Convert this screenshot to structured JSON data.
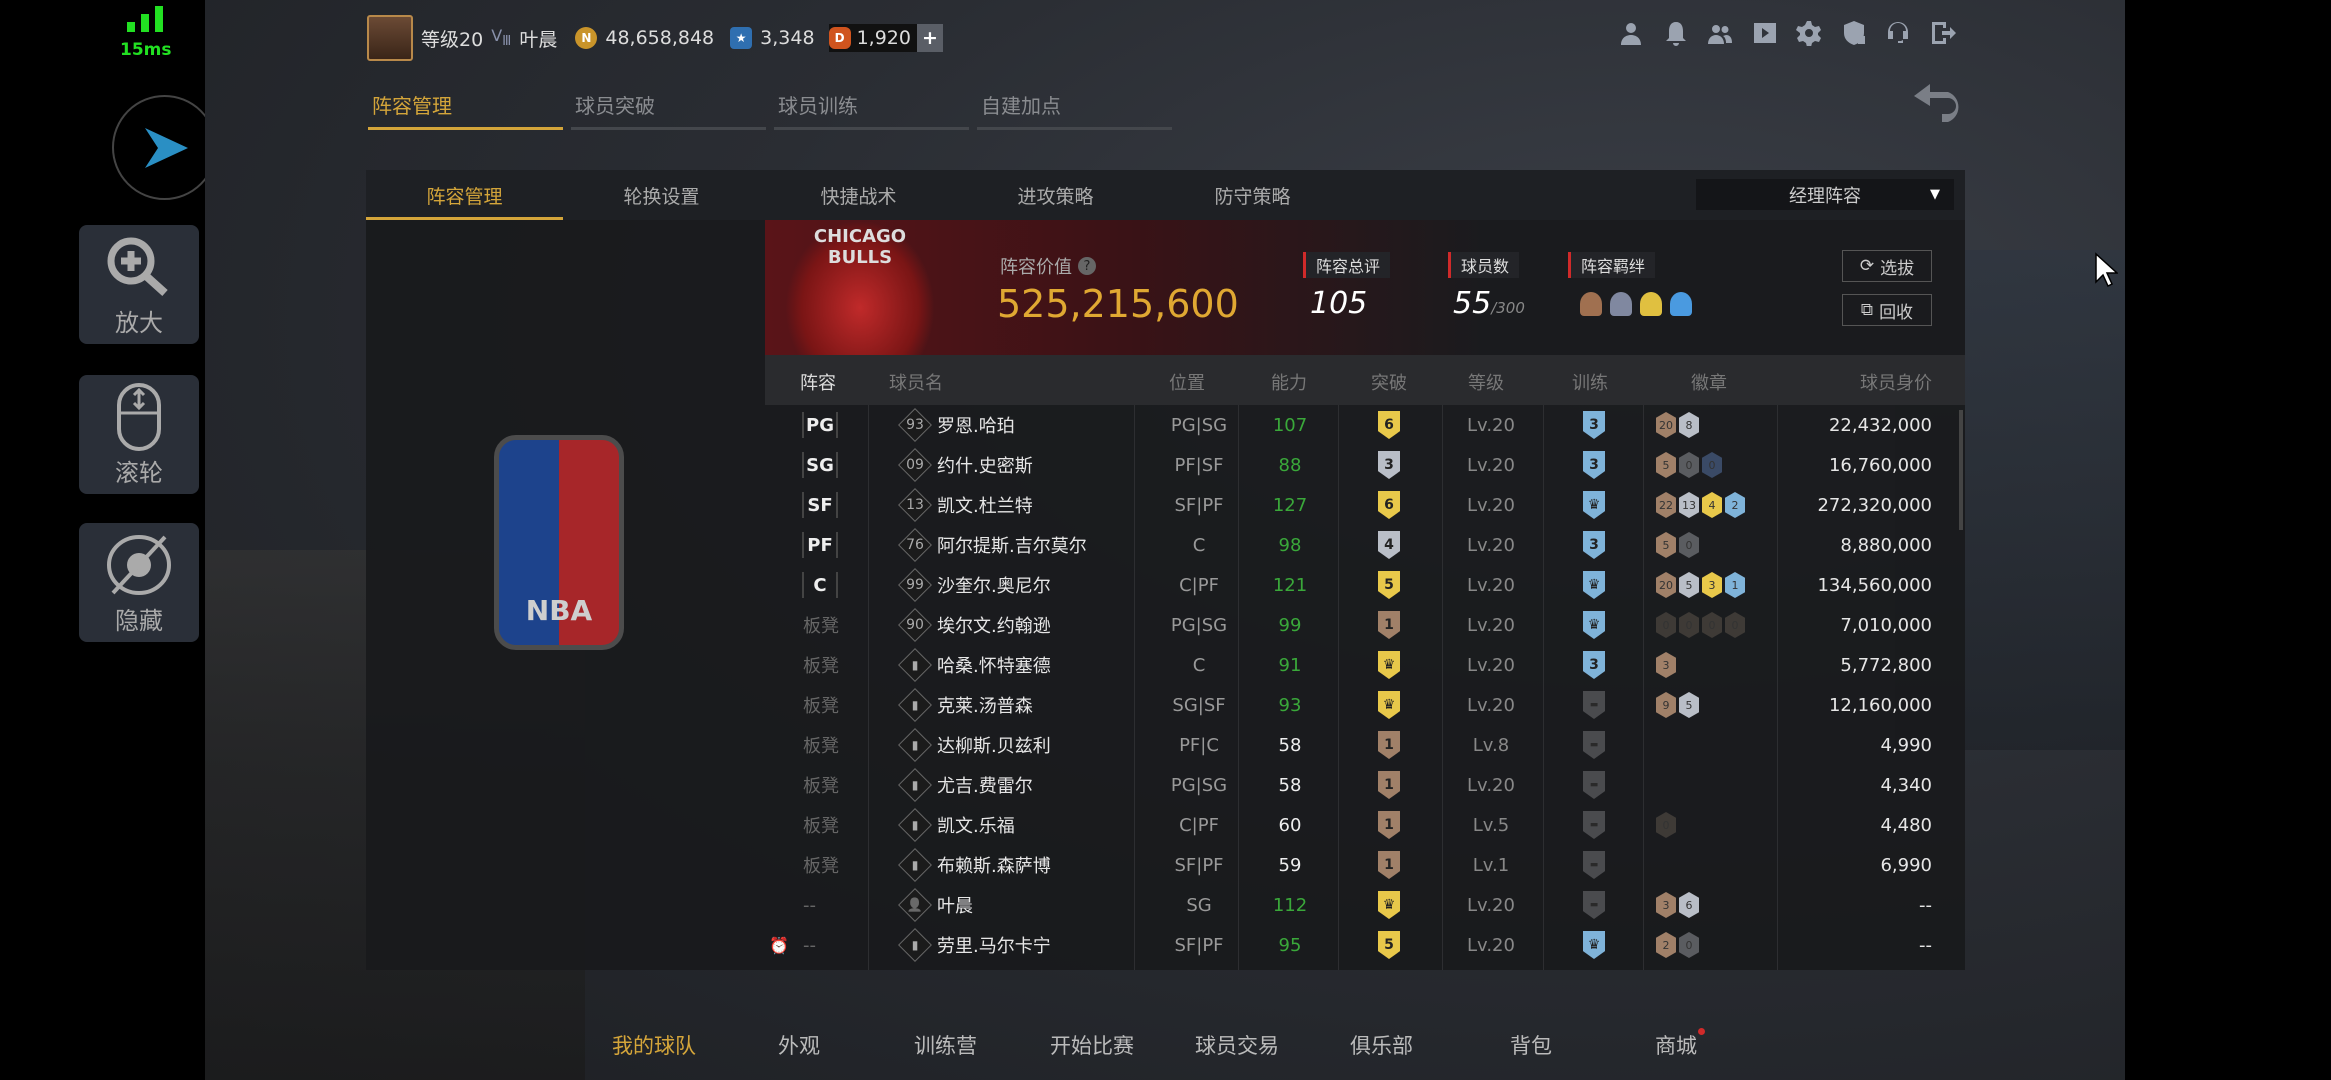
{
  "overlay": {
    "ping": "15ms",
    "zoom_label": "放大",
    "scroll_label": "滚轮",
    "hide_label": "隐藏"
  },
  "topbar": {
    "level": "等级20",
    "vip": "Ⅲ",
    "player_name": "叶晨",
    "coins": "48,658,848",
    "stars": "3,348",
    "diamonds": "1,920",
    "add": "+",
    "icons": [
      "person-icon",
      "bell-icon",
      "friends-icon",
      "video-icon",
      "gear-icon",
      "shield-lock-icon",
      "headset-icon",
      "logout-icon"
    ]
  },
  "main_tabs": [
    {
      "label": "阵容管理",
      "active": true
    },
    {
      "label": "球员突破"
    },
    {
      "label": "球员训练"
    },
    {
      "label": "自建加点"
    }
  ],
  "sub_tabs": [
    {
      "label": "阵容管理",
      "active": true
    },
    {
      "label": "轮换设置"
    },
    {
      "label": "快捷战术"
    },
    {
      "label": "进攻策略"
    },
    {
      "label": "防守策略"
    }
  ],
  "lineup_select": "经理阵容",
  "team": {
    "logo_text": "CHICAGO BULLS",
    "value_label": "阵容价值",
    "value": "525,215,600",
    "rating_label": "阵容总评",
    "rating": "105",
    "count_label": "球员数",
    "count": "55",
    "count_max": "/300",
    "chem_label": "阵容羁绊",
    "select_btn": "选拔",
    "recycle_btn": "回收"
  },
  "columns": {
    "slot": "阵容",
    "name": "球员名",
    "pos": "位置",
    "ovr": "能力",
    "break": "突破",
    "level": "等级",
    "train": "训练",
    "badges": "徽章",
    "value": "球员身价"
  },
  "colors": {
    "accent": "#d4a53a",
    "green": "#3aa83a",
    "gold": "#e8c84a",
    "silver": "#b9bec7",
    "bronze": "#a08068",
    "blue": "#7fb3d9",
    "red": "#d02a2a"
  },
  "rows": [
    {
      "slot": "PG",
      "num": "93",
      "name": "罗恩.哈珀",
      "pos": "PG|SG",
      "ovr": "107",
      "green": true,
      "brk": "6",
      "brk_tier": "gold",
      "level": "Lv.20",
      "train": "3",
      "badges": [
        [
          "20",
          "bronze"
        ],
        [
          "8",
          "silver"
        ]
      ],
      "value": "22,432,000"
    },
    {
      "slot": "SG",
      "num": "09",
      "name": "约什.史密斯",
      "pos": "PF|SF",
      "ovr": "88",
      "green": true,
      "brk": "3",
      "brk_tier": "silver",
      "level": "Lv.20",
      "train": "3",
      "badges": [
        [
          "5",
          "bronze"
        ],
        [
          "0",
          "gray"
        ],
        [
          "0",
          "navy"
        ]
      ],
      "value": "16,760,000"
    },
    {
      "slot": "SF",
      "num": "13",
      "name": "凯文.杜兰特",
      "pos": "SF|PF",
      "ovr": "127",
      "green": true,
      "brk": "6",
      "brk_tier": "gold",
      "level": "Lv.20",
      "train": "crown",
      "badges": [
        [
          "22",
          "bronze"
        ],
        [
          "13",
          "silver"
        ],
        [
          "4",
          "gold"
        ],
        [
          "2",
          "blue"
        ]
      ],
      "value": "272,320,000"
    },
    {
      "slot": "PF",
      "num": "76",
      "name": "阿尔提斯.吉尔莫尔",
      "pos": "C",
      "ovr": "98",
      "green": true,
      "brk": "4",
      "brk_tier": "silver",
      "level": "Lv.20",
      "train": "3",
      "badges": [
        [
          "5",
          "bronze"
        ],
        [
          "0",
          "gray"
        ]
      ],
      "value": "8,880,000"
    },
    {
      "slot": "C",
      "num": "99",
      "name": "沙奎尔.奥尼尔",
      "pos": "C|PF",
      "ovr": "121",
      "green": true,
      "brk": "5",
      "brk_tier": "gold",
      "level": "Lv.20",
      "train": "crown",
      "badges": [
        [
          "20",
          "bronze"
        ],
        [
          "5",
          "silver"
        ],
        [
          "3",
          "gold"
        ],
        [
          "1",
          "blue"
        ]
      ],
      "value": "134,560,000"
    },
    {
      "slot": "板凳",
      "num": "90",
      "name": "埃尔文.约翰逊",
      "pos": "PG|SG",
      "ovr": "99",
      "green": true,
      "brk": "1",
      "brk_tier": "bronze",
      "level": "Lv.20",
      "train": "crown",
      "badges": [
        [
          "0",
          "dim"
        ],
        [
          "0",
          "dim"
        ],
        [
          "0",
          "dim"
        ],
        [
          "0",
          "dim"
        ]
      ],
      "value": "7,010,000"
    },
    {
      "slot": "板凳",
      "num": "signal",
      "name": "哈桑.怀特塞德",
      "pos": "C",
      "ovr": "91",
      "green": true,
      "brk": "♛",
      "brk_tier": "gold",
      "level": "Lv.20",
      "train": "3",
      "badges": [
        [
          "3",
          "bronze"
        ]
      ],
      "value": "5,772,800"
    },
    {
      "slot": "板凳",
      "num": "signal",
      "name": "克莱.汤普森",
      "pos": "SG|SF",
      "ovr": "93",
      "green": true,
      "brk": "♛",
      "brk_tier": "gold",
      "level": "Lv.20",
      "train": "none",
      "badges": [
        [
          "9",
          "bronze"
        ],
        [
          "5",
          "silver"
        ]
      ],
      "value": "12,160,000"
    },
    {
      "slot": "板凳",
      "num": "signal",
      "name": "达柳斯.贝兹利",
      "pos": "PF|C",
      "ovr": "58",
      "green": false,
      "brk": "1",
      "brk_tier": "bronze",
      "level": "Lv.8",
      "train": "none",
      "badges": [],
      "value": "4,990"
    },
    {
      "slot": "板凳",
      "num": "signal",
      "name": "尤吉.费雷尔",
      "pos": "PG|SG",
      "ovr": "58",
      "green": false,
      "brk": "1",
      "brk_tier": "bronze",
      "level": "Lv.20",
      "train": "none",
      "badges": [],
      "value": "4,340"
    },
    {
      "slot": "板凳",
      "num": "signal",
      "name": "凯文.乐福",
      "pos": "C|PF",
      "ovr": "60",
      "green": false,
      "brk": "1",
      "brk_tier": "bronze",
      "level": "Lv.5",
      "train": "none",
      "badges": [
        [
          "0",
          "dim"
        ]
      ],
      "value": "4,480"
    },
    {
      "slot": "板凳",
      "num": "signal",
      "name": "布赖斯.森萨博",
      "pos": "SF|PF",
      "ovr": "59",
      "green": false,
      "brk": "1",
      "brk_tier": "bronze",
      "level": "Lv.1",
      "train": "none",
      "badges": [],
      "value": "6,990"
    },
    {
      "slot": "--",
      "num": "user",
      "name": "叶晨",
      "pos": "SG",
      "ovr": "112",
      "green": true,
      "brk": "♛",
      "brk_tier": "gold",
      "level": "Lv.20",
      "train": "none",
      "badges": [
        [
          "3",
          "bronze"
        ],
        [
          "6",
          "silver"
        ]
      ],
      "value": "--"
    },
    {
      "slot": "--",
      "num": "signal",
      "alarm": true,
      "name": "劳里.马尔卡宁",
      "pos": "SF|PF",
      "ovr": "95",
      "green": true,
      "brk": "5",
      "brk_tier": "gold",
      "level": "Lv.20",
      "train": "crown",
      "badges": [
        [
          "2",
          "bronze"
        ],
        [
          "0",
          "gray"
        ]
      ],
      "value": "--"
    }
  ],
  "bottom_nav": [
    {
      "label": "我的球队",
      "active": true
    },
    {
      "label": "外观"
    },
    {
      "label": "训练营"
    },
    {
      "label": "开始比赛"
    },
    {
      "label": "球员交易"
    },
    {
      "label": "俱乐部"
    },
    {
      "label": "背包"
    },
    {
      "label": "商城",
      "dot": true
    }
  ]
}
